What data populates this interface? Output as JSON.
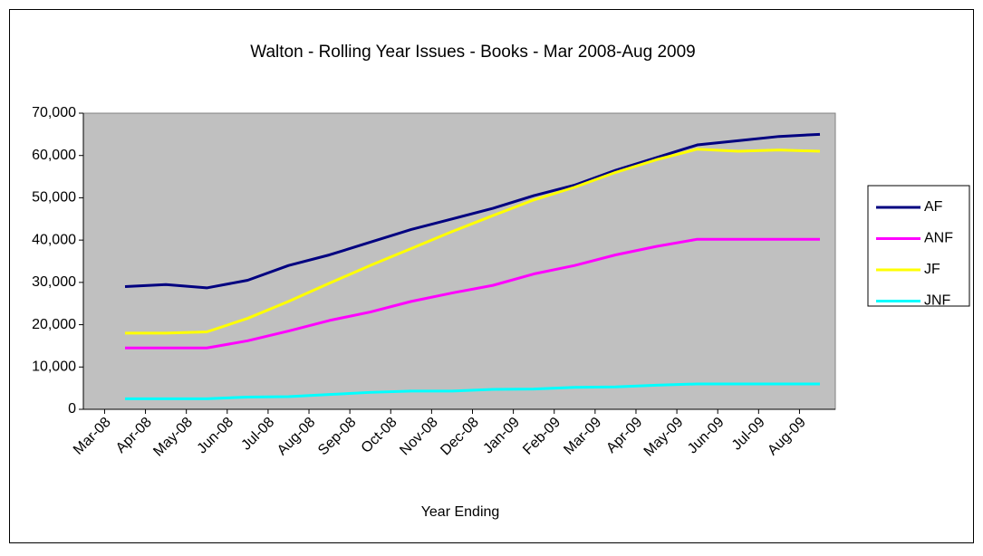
{
  "chart_data": {
    "type": "line",
    "title": "Walton - Rolling Year Issues - Books - Mar 2008-Aug 2009",
    "x_label": "Year Ending",
    "categories": [
      "Mar-08",
      "Apr-08",
      "May-08",
      "Jun-08",
      "Jul-08",
      "Aug-08",
      "Sep-08",
      "Oct-08",
      "Nov-08",
      "Dec-08",
      "Jan-09",
      "Feb-09",
      "Mar-09",
      "Apr-09",
      "May-09",
      "Jun-09",
      "Jul-09",
      "Aug-09"
    ],
    "series": [
      {
        "name": "AF",
        "color": "#000080",
        "values": [
          29000,
          29500,
          28700,
          30500,
          34000,
          36500,
          39500,
          42500,
          45000,
          47500,
          50500,
          53000,
          56500,
          59500,
          62500,
          63500,
          64500,
          65000
        ]
      },
      {
        "name": "ANF",
        "color": "#ff00ff",
        "values": [
          14500,
          14500,
          14500,
          16200,
          18500,
          21000,
          23000,
          25500,
          27500,
          29300,
          32000,
          34000,
          36500,
          38500,
          40200,
          40200,
          40200,
          40200
        ]
      },
      {
        "name": "JF",
        "color": "#ffff00",
        "values": [
          18000,
          18000,
          18300,
          21500,
          25500,
          29800,
          34000,
          38000,
          42000,
          45800,
          49500,
          52500,
          56000,
          59000,
          61500,
          61000,
          61300,
          61000
        ]
      },
      {
        "name": "JNF",
        "color": "#00ffff",
        "values": [
          2500,
          2500,
          2500,
          2900,
          3000,
          3500,
          4000,
          4300,
          4300,
          4700,
          4800,
          5200,
          5300,
          5700,
          6000,
          6000,
          6000,
          6000
        ]
      }
    ],
    "ylim": [
      0,
      70000
    ],
    "yticks": [
      0,
      {
        "value": 10000,
        "label": "10,000"
      },
      {
        "value": 20000,
        "label": "20,000"
      },
      {
        "value": 30000,
        "label": "30,000"
      },
      {
        "value": 40000,
        "label": "40,000"
      },
      {
        "value": 50000,
        "label": "50,000"
      },
      {
        "value": 60000,
        "label": "60,000"
      },
      {
        "value": 70000,
        "label": "70,000"
      }
    ],
    "grid": false,
    "legend": "right",
    "plot_background": "#c0c0c0"
  }
}
